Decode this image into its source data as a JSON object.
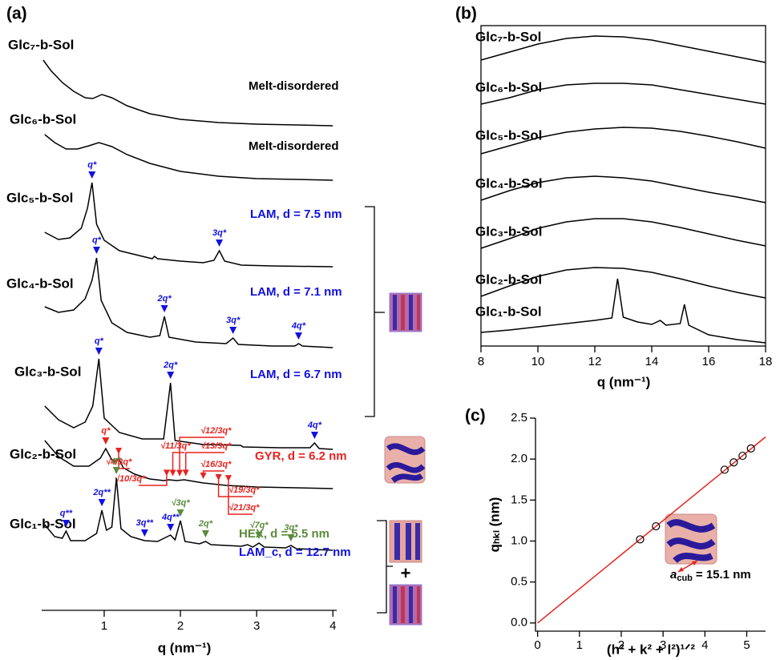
{
  "chart_data": [
    {
      "type": "line",
      "panel": "(a)",
      "xlabel": "q (nm⁻¹)",
      "xlim": [
        0.18,
        4.05
      ],
      "xticks": [
        1,
        2,
        3,
        4
      ],
      "series": [
        {
          "name": "Glc₇-b-Sol",
          "color": "#000000",
          "x": [
            0.2,
            0.3,
            0.45,
            0.6,
            0.75,
            0.85,
            0.97,
            1.1,
            1.3,
            1.6,
            2.0,
            2.5,
            3.0,
            4.0
          ],
          "values": [
            85,
            72,
            57,
            46,
            38,
            37,
            42,
            38,
            28,
            18,
            11,
            7,
            5,
            3
          ],
          "peaks": []
        },
        {
          "name": "Glc₆-b-Sol",
          "color": "#000000",
          "x": [
            0.22,
            0.35,
            0.5,
            0.65,
            0.8,
            0.93,
            1.1,
            1.3,
            1.6,
            2.0,
            2.5,
            3.0,
            4.0
          ],
          "values": [
            60,
            50,
            42,
            42,
            46,
            50,
            45,
            35,
            24,
            14,
            8,
            5,
            3
          ],
          "peaks": []
        },
        {
          "name": "Glc₅-b-Sol",
          "color": "#000000",
          "x": [
            0.22,
            0.4,
            0.55,
            0.7,
            0.78,
            0.84,
            0.9,
            1.0,
            1.2,
            1.5,
            1.63,
            1.66,
            1.7,
            2.0,
            2.3,
            2.44,
            2.51,
            2.58,
            2.8,
            3.2,
            4.0
          ],
          "values": [
            45,
            36,
            38,
            50,
            75,
            107,
            55,
            35,
            22,
            15,
            12,
            15,
            12,
            9,
            7,
            10,
            22,
            9,
            4,
            3,
            2
          ],
          "peaks": [
            {
              "label": "q*",
              "x": 0.84,
              "color": "#1010e0"
            },
            {
              "label": "3q*",
              "x": 2.51,
              "color": "#1010e0"
            }
          ]
        },
        {
          "name": "Glc₄-b-Sol",
          "color": "#000000",
          "x": [
            0.22,
            0.4,
            0.6,
            0.75,
            0.84,
            0.9,
            0.96,
            1.1,
            1.3,
            1.6,
            1.73,
            1.79,
            1.85,
            2.2,
            2.6,
            2.69,
            2.76,
            3.2,
            3.5,
            3.55,
            3.6,
            4.0
          ],
          "values": [
            52,
            45,
            48,
            62,
            85,
            113,
            60,
            32,
            20,
            14,
            16,
            40,
            14,
            8,
            6,
            13,
            5,
            3,
            3,
            6,
            3,
            1
          ],
          "peaks": [
            {
              "label": "q*",
              "x": 0.9,
              "color": "#1010e0"
            },
            {
              "label": "2q*",
              "x": 1.79,
              "color": "#1010e0"
            },
            {
              "label": "3q*",
              "x": 2.69,
              "color": "#1010e0"
            },
            {
              "label": "4q*",
              "x": 3.55,
              "color": "#1010e0"
            }
          ]
        },
        {
          "name": "Glc₃-b-Sol",
          "color": "#000000",
          "x": [
            0.22,
            0.4,
            0.6,
            0.75,
            0.85,
            0.93,
            1.0,
            1.2,
            1.5,
            1.78,
            1.87,
            1.93,
            2.3,
            2.79,
            2.82,
            3.3,
            3.7,
            3.76,
            3.82,
            4.0
          ],
          "values": [
            55,
            38,
            28,
            35,
            55,
            114,
            40,
            22,
            14,
            14,
            84,
            12,
            7,
            6,
            4,
            3,
            3,
            9,
            2,
            1
          ],
          "peaks": [
            {
              "label": "q*",
              "x": 0.93,
              "color": "#1010e0"
            },
            {
              "label": "2q*",
              "x": 1.87,
              "color": "#1010e0"
            },
            {
              "label": "4q*",
              "x": 3.76,
              "color": "#1010e0"
            }
          ]
        },
        {
          "name": "Glc₂-b-Sol",
          "color": "#000000",
          "x": [
            0.22,
            0.4,
            0.6,
            0.8,
            0.95,
            1.02,
            1.1,
            1.15,
            1.19,
            1.25,
            1.4,
            1.6,
            1.78,
            1.85,
            1.95,
            2.05,
            2.3,
            2.6,
            3.0,
            4.0
          ],
          "values": [
            62,
            42,
            30,
            30,
            40,
            52,
            38,
            36,
            40,
            28,
            20,
            14,
            12,
            13,
            12,
            13,
            9,
            6,
            4,
            2
          ],
          "peaks": [
            {
              "label": "q*",
              "x": 1.02,
              "color": "#e8231f"
            },
            {
              "label": "√4/3q*",
              "x": 1.19,
              "color": "#e8231f"
            },
            {
              "label": "√10/3q*",
              "x": 1.82,
              "color": "#e8231f"
            },
            {
              "label": "√11/3q*",
              "x": 1.9,
              "color": "#e8231f"
            },
            {
              "label": "√12/3q*",
              "x": 1.99,
              "color": "#e8231f"
            },
            {
              "label": "√13/3q*",
              "x": 2.07,
              "color": "#e8231f"
            },
            {
              "label": "√16/3q*",
              "x": 2.3,
              "color": "#e8231f"
            },
            {
              "label": "√19/3q*",
              "x": 2.5,
              "color": "#e8231f"
            },
            {
              "label": "√21/3q*",
              "x": 2.63,
              "color": "#e8231f"
            }
          ]
        },
        {
          "name": "Glc₁-b-Sol",
          "color": "#000000",
          "x": [
            0.22,
            0.35,
            0.45,
            0.5,
            0.56,
            0.75,
            0.9,
            0.97,
            1.03,
            1.1,
            1.16,
            1.22,
            1.35,
            1.53,
            1.7,
            1.87,
            1.93,
            2.0,
            2.06,
            2.25,
            2.33,
            2.4,
            2.8,
            2.88,
            2.95,
            3.03,
            3.1,
            3.38,
            3.45,
            3.52,
            4.0
          ],
          "values": [
            33,
            18,
            16,
            25,
            13,
            13,
            22,
            51,
            26,
            30,
            91,
            28,
            18,
            13,
            12,
            20,
            14,
            38,
            12,
            9,
            12,
            8,
            6,
            8,
            5,
            10,
            5,
            4,
            7,
            3,
            1
          ],
          "peaks": [
            {
              "label": "q**",
              "x": 0.5,
              "color": "#1010e0"
            },
            {
              "label": "2q**",
              "x": 0.97,
              "color": "#1010e0"
            },
            {
              "label": "q*",
              "x": 1.16,
              "color": "#5b8a3c"
            },
            {
              "label": "3q**",
              "x": 1.53,
              "color": "#1010e0"
            },
            {
              "label": "4q**",
              "x": 1.87,
              "color": "#1010e0"
            },
            {
              "label": "√3q*",
              "x": 2.0,
              "color": "#5b8a3c"
            },
            {
              "label": "2q*",
              "x": 2.33,
              "color": "#5b8a3c"
            },
            {
              "label": "√7q*",
              "x": 3.03,
              "color": "#5b8a3c"
            },
            {
              "label": "3q*",
              "x": 3.45,
              "color": "#5b8a3c"
            }
          ]
        }
      ],
      "annotations": [
        {
          "text": "Melt-disordered",
          "color": "#000000"
        },
        {
          "text": "Melt-disordered",
          "color": "#000000"
        },
        {
          "text": "LAM, d = 7.5 nm",
          "color": "#1010e0"
        },
        {
          "text": "LAM, d = 7.1 nm",
          "color": "#1010e0"
        },
        {
          "text": "LAM, d = 6.7 nm",
          "color": "#1010e0"
        },
        {
          "text": "GYR, d = 6.2 nm",
          "color": "#e8231f"
        },
        {
          "text": "HEX, d = 5.5 nm",
          "color": "#5b8a3c"
        },
        {
          "text": "LAM_c, d = 12.7 nm",
          "color": "#1010e0"
        }
      ],
      "plus": "+"
    },
    {
      "type": "line",
      "panel": "(b)",
      "xlabel": "q (nm⁻¹)",
      "xlim": [
        8,
        18
      ],
      "xticks": [
        8,
        10,
        12,
        14,
        16,
        18
      ],
      "series": [
        {
          "name": "Glc₇-b-Sol",
          "color": "#000000",
          "x": [
            8,
            9,
            10,
            11,
            12,
            13,
            14,
            15,
            16,
            17,
            18
          ],
          "values": [
            15,
            25,
            35,
            42,
            45,
            44,
            40,
            33,
            26,
            19,
            12
          ]
        },
        {
          "name": "Glc₆-b-Sol",
          "color": "#000000",
          "x": [
            8,
            9,
            10,
            11,
            12,
            13,
            14,
            15,
            16,
            17,
            18
          ],
          "values": [
            25,
            33,
            43,
            49,
            51,
            51,
            49,
            43,
            37,
            31,
            25
          ]
        },
        {
          "name": "Glc₅-b-Sol",
          "color": "#000000",
          "x": [
            8,
            9,
            10,
            11,
            12,
            13,
            14,
            15,
            16,
            17,
            18
          ],
          "values": [
            23,
            33,
            43,
            50,
            54,
            56,
            55,
            51,
            45,
            38,
            30
          ]
        },
        {
          "name": "Glc₄-b-Sol",
          "color": "#000000",
          "x": [
            8,
            9,
            10,
            11,
            12,
            13,
            14,
            15,
            16,
            17,
            18
          ],
          "values": [
            25,
            37,
            47,
            53,
            55,
            53,
            49,
            42,
            35,
            29,
            22
          ]
        },
        {
          "name": "Glc₃-b-Sol",
          "color": "#000000",
          "x": [
            8,
            9,
            10,
            11,
            12,
            13,
            14,
            15,
            16,
            17,
            18
          ],
          "values": [
            25,
            37,
            50,
            58,
            62,
            62,
            58,
            51,
            43,
            35,
            28
          ]
        },
        {
          "name": "Glc₂-b-Sol",
          "color": "#000000",
          "x": [
            8,
            9,
            10,
            11,
            12,
            13,
            14,
            15,
            16,
            17,
            18
          ],
          "values": [
            25,
            38,
            50,
            58,
            61,
            60,
            55,
            47,
            38,
            30,
            23
          ]
        },
        {
          "name": "Glc₁-b-Sol",
          "color": "#000000",
          "x": [
            8,
            9,
            10,
            11,
            12,
            12.6,
            12.8,
            13.0,
            13.5,
            14.0,
            14.3,
            14.5,
            15.0,
            15.15,
            15.3,
            16,
            17,
            18
          ],
          "values": [
            15,
            18,
            22,
            26,
            30,
            33,
            82,
            34,
            28,
            25,
            30,
            24,
            26,
            50,
            24,
            12,
            6,
            2
          ]
        }
      ]
    },
    {
      "type": "scatter",
      "panel": "(c)",
      "xlabel": "(h² + k² + l²)¹ᐟ²",
      "ylabel": "qₕₖₗ (nm)",
      "xlim": [
        -0.05,
        5.45
      ],
      "ylim": [
        -0.1,
        2.5
      ],
      "xticks": [
        0,
        1,
        2,
        3,
        4,
        5
      ],
      "yticks": [
        {
          "value": 0,
          "label": "0.0"
        },
        {
          "value": 0.5,
          "label": "0.5"
        },
        {
          "value": 1,
          "label": "1.0"
        },
        {
          "value": 1.5,
          "label": "1.5"
        },
        {
          "value": 2,
          "label": "2.0"
        },
        {
          "value": 2.5,
          "label": "2.5"
        }
      ],
      "x": [
        2.45,
        2.83,
        4.47,
        4.69,
        4.9,
        5.1
      ],
      "values": [
        1.02,
        1.18,
        1.87,
        1.96,
        2.04,
        2.13
      ],
      "color": "#000000",
      "fit": {
        "x": [
          0,
          5.45
        ],
        "values": [
          0,
          2.27
        ],
        "color": "#e8231f"
      },
      "inset_label": {
        "symbol": "a",
        "sub": "cub",
        "text": "= 15.1 nm"
      }
    }
  ]
}
